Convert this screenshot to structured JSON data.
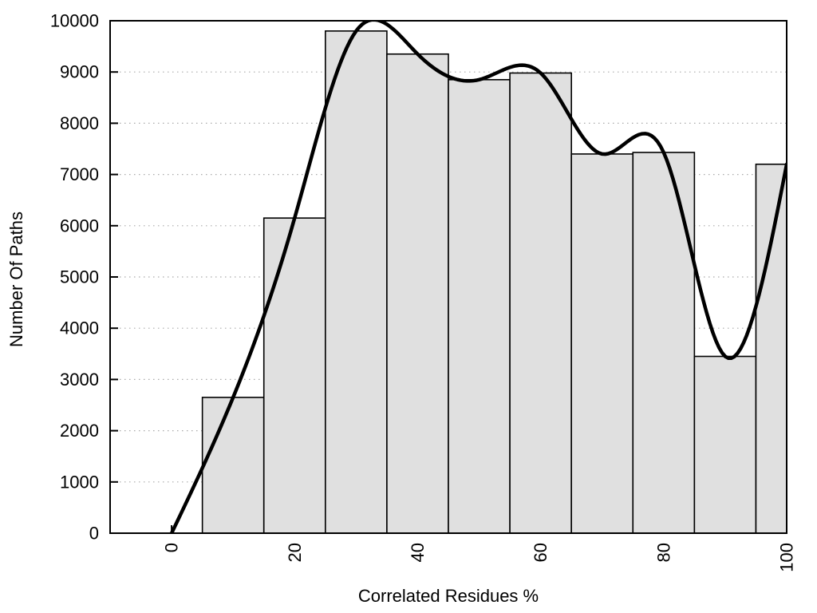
{
  "page": {
    "background": "#ffffff"
  },
  "chart_data": {
    "type": "bar",
    "subtype": "histogram-with-smooth-curve",
    "title": "",
    "xlabel": "Correlated Residues %",
    "ylabel": "Number Of Paths",
    "xlim": [
      -10,
      100
    ],
    "ylim": [
      0,
      10000
    ],
    "xticks": [
      0,
      20,
      40,
      60,
      80,
      100
    ],
    "yticks": [
      0,
      1000,
      2000,
      3000,
      4000,
      5000,
      6000,
      7000,
      8000,
      9000,
      10000
    ],
    "grid": "horizontal-dotted",
    "legend": "none",
    "bars": {
      "bin_edges": [
        5,
        15,
        25,
        35,
        45,
        55,
        65,
        75,
        85,
        95,
        100
      ],
      "values": [
        2650,
        6150,
        9800,
        9350,
        8850,
        8980,
        7400,
        7430,
        3450,
        7200
      ],
      "fill": "#e0e0e0",
      "stroke": "#000000"
    },
    "curve": {
      "type": "natural-cubic-spline",
      "x": [
        0,
        10,
        20,
        30,
        40,
        50,
        60,
        70,
        80,
        90,
        100
      ],
      "y": [
        0,
        2650,
        6150,
        9800,
        9350,
        8850,
        8980,
        7400,
        7430,
        3450,
        7200
      ],
      "color": "#000000"
    },
    "colors": {
      "axis": "#000000",
      "grid": "#aaaaaa",
      "background": "#ffffff"
    }
  }
}
